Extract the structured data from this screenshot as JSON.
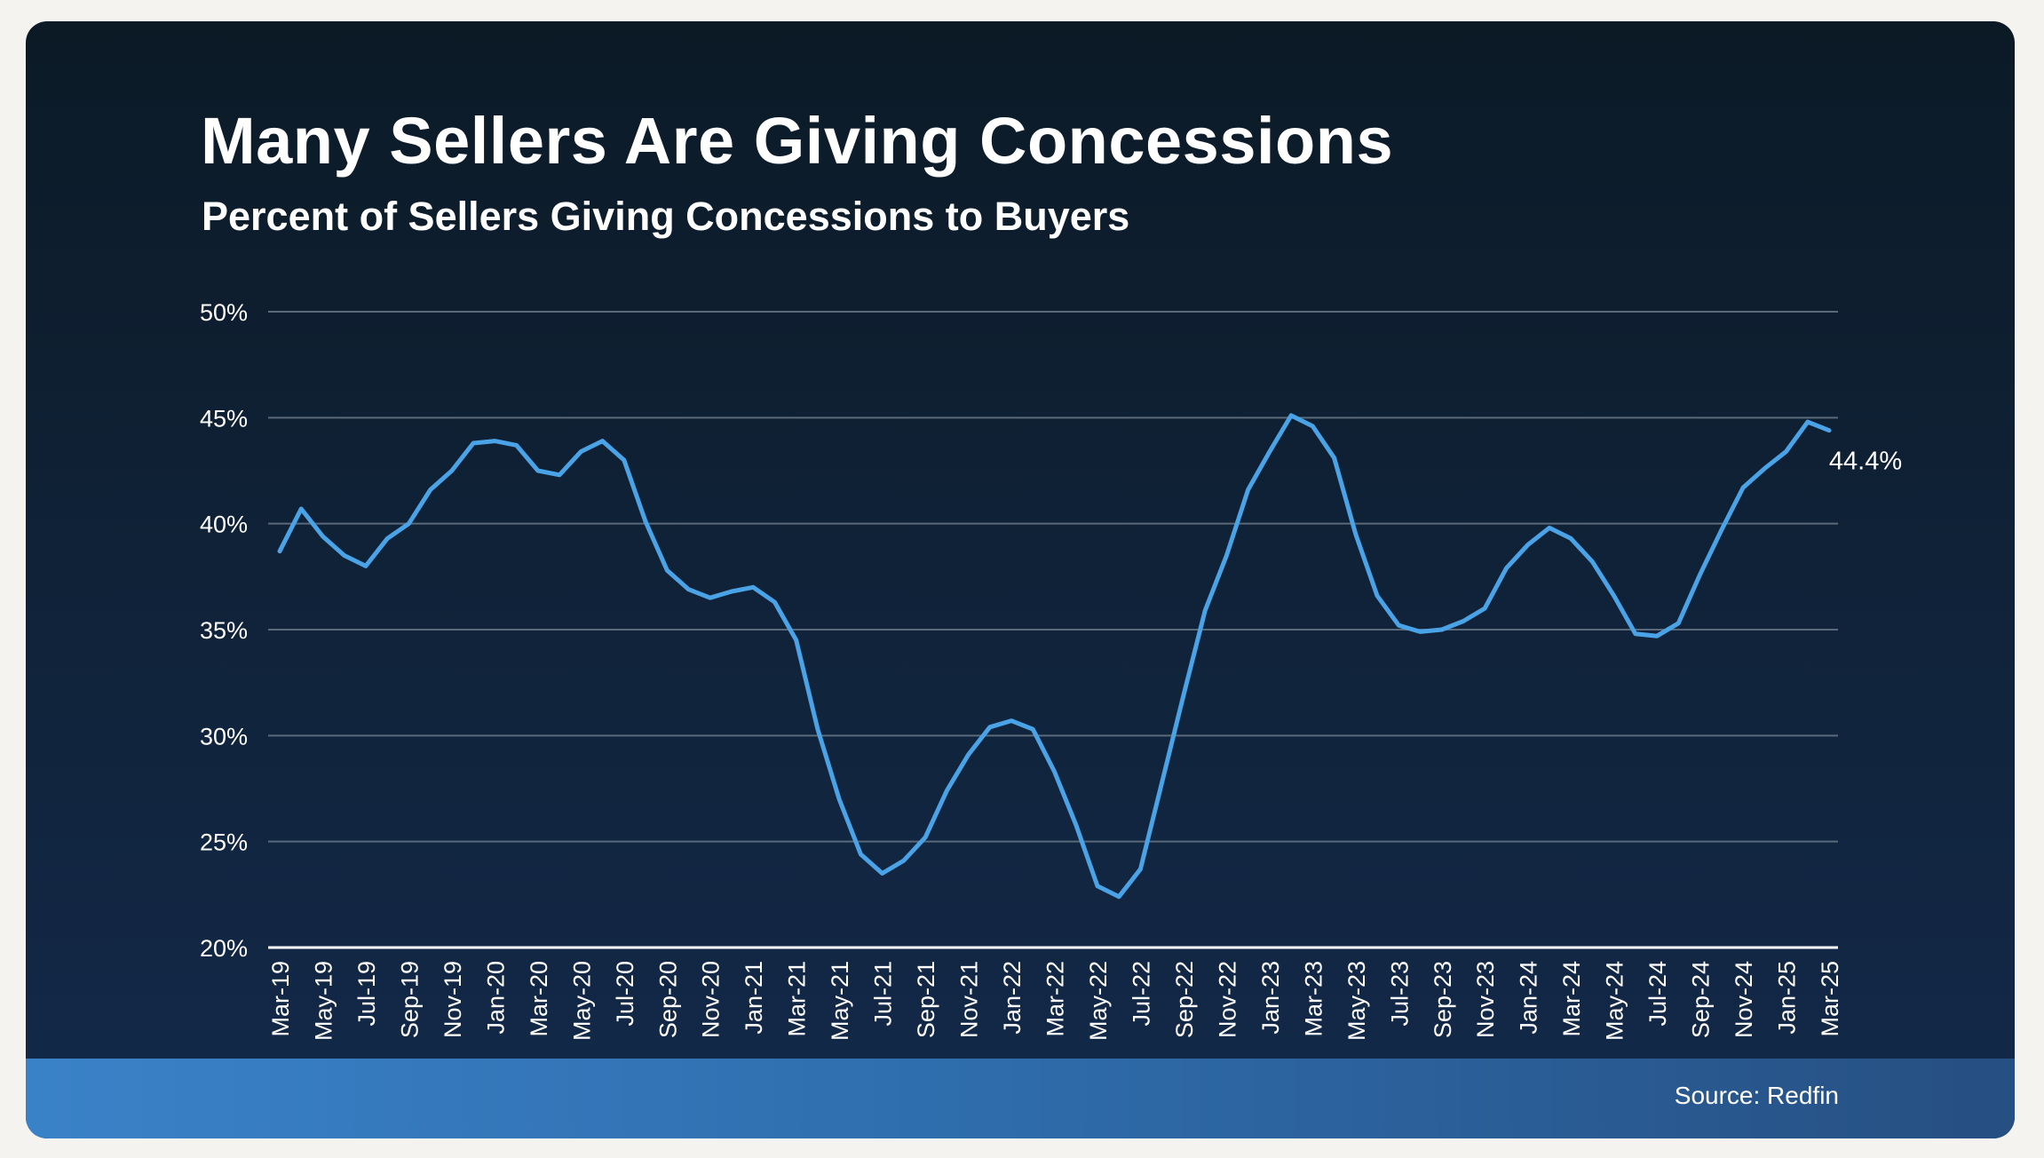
{
  "header": {
    "title": "Many Sellers Are Giving Concessions",
    "subtitle": "Percent of Sellers Giving Concessions to Buyers"
  },
  "footer": {
    "source": "Source: Redfin"
  },
  "colors": {
    "line": "#4aa3e6",
    "grid": "#5a6a7a",
    "axis": "#ffffff",
    "text": "#ffffff"
  },
  "chart_data": {
    "type": "line",
    "title": "Many Sellers Are Giving Concessions",
    "subtitle": "Percent of Sellers Giving Concessions to Buyers",
    "xlabel": "",
    "ylabel": "",
    "grid": true,
    "ylim": [
      20,
      50
    ],
    "y_ticks": [
      "20%",
      "25%",
      "30%",
      "35%",
      "40%",
      "45%",
      "50%"
    ],
    "y_tick_values": [
      20,
      25,
      30,
      35,
      40,
      45,
      50
    ],
    "x_tick_labels": [
      "Mar-19",
      "May-19",
      "Jul-19",
      "Sep-19",
      "Nov-19",
      "Jan-20",
      "Mar-20",
      "May-20",
      "Jul-20",
      "Sep-20",
      "Nov-20",
      "Jan-21",
      "Mar-21",
      "May-21",
      "Jul-21",
      "Sep-21",
      "Nov-21",
      "Jan-22",
      "Mar-22",
      "May-22",
      "Jul-22",
      "Sep-22",
      "Nov-22",
      "Jan-23",
      "Mar-23",
      "May-23",
      "Jul-23",
      "Sep-23",
      "Nov-23",
      "Jan-24",
      "Mar-24",
      "May-24",
      "Jul-24",
      "Sep-24",
      "Nov-24",
      "Jan-25",
      "Mar-25"
    ],
    "x": [
      "Mar-19",
      "Apr-19",
      "May-19",
      "Jun-19",
      "Jul-19",
      "Aug-19",
      "Sep-19",
      "Oct-19",
      "Nov-19",
      "Dec-19",
      "Jan-20",
      "Feb-20",
      "Mar-20",
      "Apr-20",
      "May-20",
      "Jun-20",
      "Jul-20",
      "Aug-20",
      "Sep-20",
      "Oct-20",
      "Nov-20",
      "Dec-20",
      "Jan-21",
      "Feb-21",
      "Mar-21",
      "Apr-21",
      "May-21",
      "Jun-21",
      "Jul-21",
      "Aug-21",
      "Sep-21",
      "Oct-21",
      "Nov-21",
      "Dec-21",
      "Jan-22",
      "Feb-22",
      "Mar-22",
      "Apr-22",
      "May-22",
      "Jun-22",
      "Jul-22",
      "Aug-22",
      "Sep-22",
      "Oct-22",
      "Nov-22",
      "Dec-22",
      "Jan-23",
      "Feb-23",
      "Mar-23",
      "Apr-23",
      "May-23",
      "Jun-23",
      "Jul-23",
      "Aug-23",
      "Sep-23",
      "Oct-23",
      "Nov-23",
      "Dec-23",
      "Jan-24",
      "Feb-24",
      "Mar-24",
      "Apr-24",
      "May-24",
      "Jun-24",
      "Jul-24",
      "Aug-24",
      "Sep-24",
      "Oct-24",
      "Nov-24",
      "Dec-24",
      "Jan-25",
      "Feb-25",
      "Mar-25"
    ],
    "series": [
      {
        "values": [
          38.7,
          40.7,
          39.4,
          38.5,
          38.0,
          39.3,
          40.0,
          41.6,
          42.5,
          43.8,
          43.9,
          43.7,
          42.5,
          42.3,
          43.4,
          43.9,
          43.0,
          40.1,
          37.8,
          36.9,
          36.5,
          36.8,
          37.0,
          36.3,
          34.5,
          30.3,
          27.0,
          24.4,
          23.5,
          24.1,
          25.2,
          27.4,
          29.1,
          30.4,
          30.7,
          30.3,
          28.3,
          25.8,
          22.9,
          22.4,
          23.7,
          27.8,
          31.9,
          35.9,
          38.5,
          41.6,
          43.4,
          45.1,
          44.6,
          43.1,
          39.5,
          36.6,
          35.2,
          34.9,
          35.0,
          35.4,
          36.0,
          37.9,
          39.0,
          39.8,
          39.3,
          38.2,
          36.6,
          34.8,
          34.7,
          35.3,
          37.6,
          39.7,
          41.7,
          42.6,
          43.4,
          44.8,
          44.4
        ],
        "end_label": "44.4%"
      }
    ]
  }
}
